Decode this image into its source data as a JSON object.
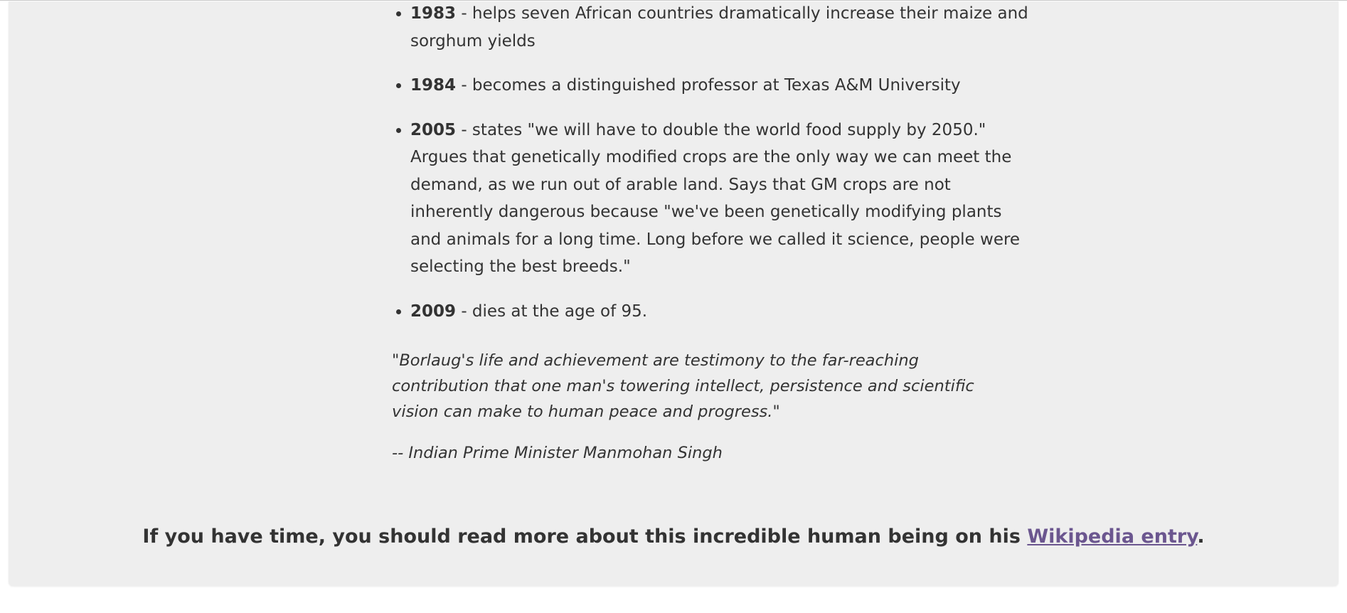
{
  "timeline": [
    {
      "year": "1983",
      "text": " - helps seven African countries dramatically increase their maize and sorghum yields"
    },
    {
      "year": "1984",
      "text": " - becomes a distinguished professor at Texas A&M University"
    },
    {
      "year": "2005",
      "text": " - states \"we will have to double the world food supply by 2050.\" Argues that genetically modified crops are the only way we can meet the demand, as we run out of arable land. Says that GM crops are not inherently dangerous because \"we've been genetically modifying plants and animals for a long time. Long before we called it science, people were selecting the best breeds.\""
    },
    {
      "year": "2009",
      "text": " - dies at the age of 95."
    }
  ],
  "quote": {
    "text": "\"Borlaug's life and achievement are testimony to the far-reaching contribution that one man's towering intellect, persistence and scientific vision can make to human peace and progress.\"",
    "attribution": "-- Indian Prime Minister Manmohan Singh"
  },
  "footer": {
    "prefix": "If you have time, you should read more about this incredible human being on his ",
    "link_text": "Wikipedia entry",
    "suffix": "."
  },
  "colors": {
    "panel_bg": "#eeeeee",
    "text": "#333333",
    "link": "#6b568f"
  }
}
